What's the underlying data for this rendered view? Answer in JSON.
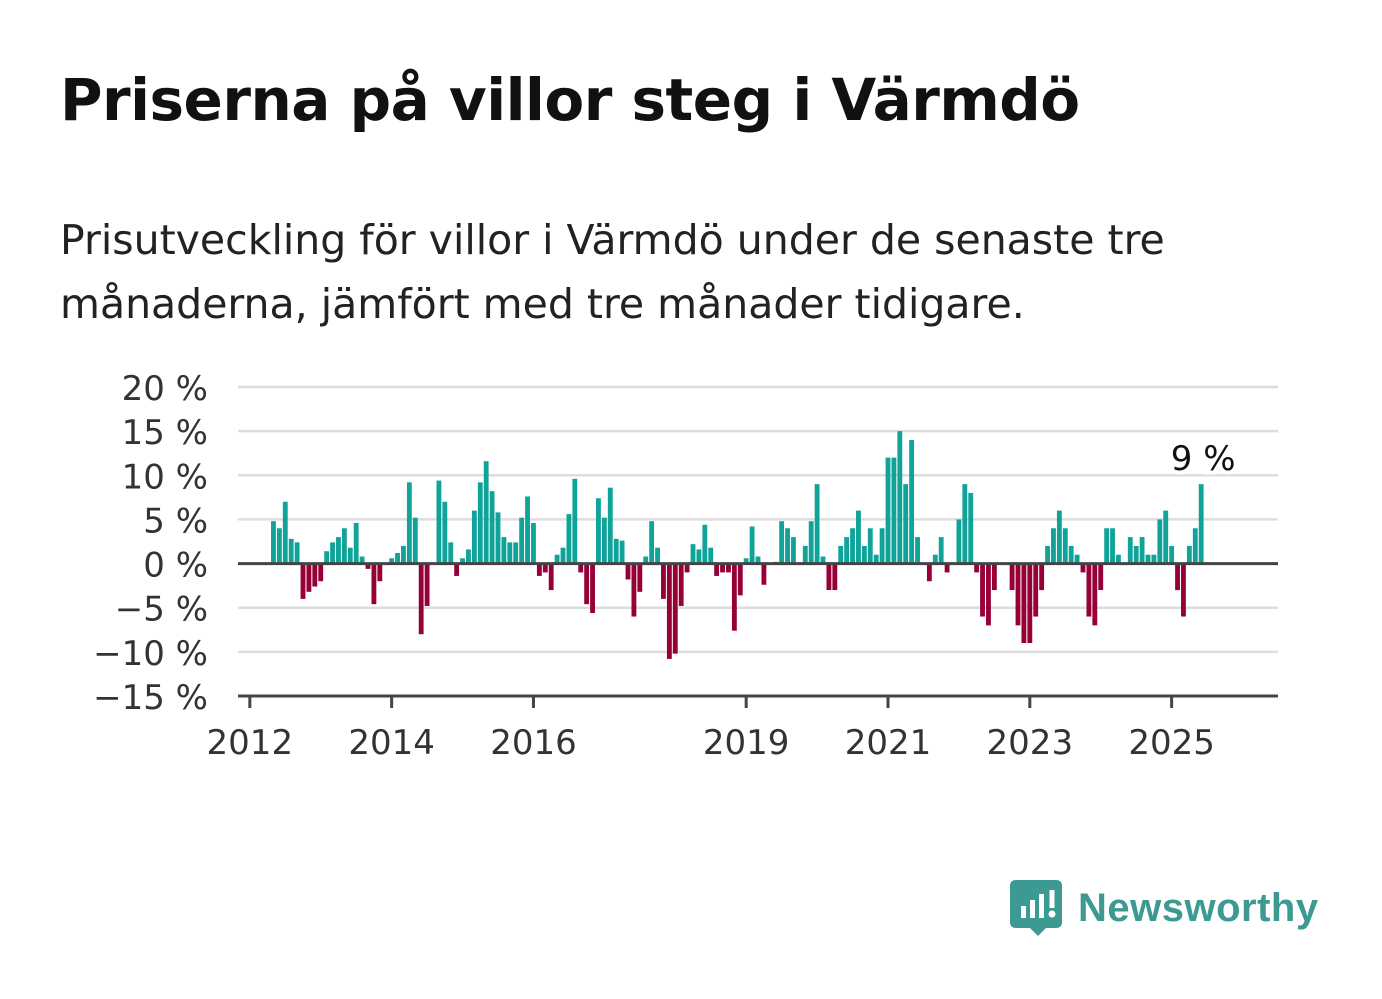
{
  "title": "Priserna på villor steg i Värmdö",
  "subtitle": "Prisutveckling för villor i Värmdö under de senaste tre månaderna, jämfört med tre månader tidigare.",
  "brand": {
    "name": "Newsworthy",
    "icon": "newsworthy-logo-icon"
  },
  "colors": {
    "positive": "#10a39a",
    "negative": "#960037",
    "grid": "#dddddd",
    "axis": "#444444",
    "brand": "#3d9a92"
  },
  "chart_data": {
    "type": "bar",
    "title": "Priserna på villor steg i Värmdö",
    "xlabel": "",
    "ylabel": "",
    "ylim": [
      -15,
      20
    ],
    "y_ticks": [
      20,
      15,
      10,
      5,
      0,
      -5,
      -10,
      -15
    ],
    "y_tick_labels": [
      "20 %",
      "15 %",
      "10 %",
      "5 %",
      "0 %",
      "−5 %",
      "−10 %",
      "−15 %"
    ],
    "x_tick_labels": [
      "2012",
      "2014",
      "2016",
      "2019",
      "2021",
      "2023",
      "2025"
    ],
    "x_tick_years": [
      2012,
      2014,
      2016,
      2019,
      2021,
      2023,
      2025
    ],
    "grid": true,
    "start": "2012-05",
    "frequency": "monthly",
    "values": [
      4.8,
      4.0,
      7.0,
      2.8,
      2.4,
      -4.0,
      -3.2,
      -2.6,
      -2.0,
      1.4,
      2.4,
      3.0,
      4.0,
      1.8,
      4.6,
      0.8,
      -0.6,
      -4.6,
      -2.0,
      0.0,
      0.6,
      1.2,
      2.0,
      9.2,
      5.2,
      -8.0,
      -4.8,
      0.0,
      9.4,
      7.0,
      2.4,
      -1.4,
      0.6,
      1.6,
      6.0,
      9.2,
      11.6,
      8.2,
      5.8,
      3.0,
      2.4,
      2.4,
      5.2,
      7.6,
      4.6,
      -1.4,
      -1.0,
      -3.0,
      1.0,
      1.8,
      5.6,
      9.6,
      -1.0,
      -4.6,
      -5.6,
      7.4,
      5.2,
      8.6,
      2.8,
      2.6,
      -1.8,
      -6.0,
      -3.2,
      0.8,
      4.8,
      1.8,
      -4.0,
      -10.8,
      -10.2,
      -4.8,
      -1.0,
      2.2,
      1.6,
      4.4,
      1.8,
      -1.4,
      -1.0,
      -1.0,
      -7.6,
      -3.6,
      0.6,
      4.2,
      0.8,
      -2.4,
      0.0,
      0.2,
      4.8,
      4.0,
      3.0,
      0.0,
      2.0,
      4.8,
      9.0,
      0.8,
      -3.0,
      -3.0,
      2.0,
      3.0,
      4.0,
      6.0,
      2.0,
      4.0,
      1.0,
      4.0,
      12.0,
      12.0,
      15.0,
      9.0,
      14.0,
      3.0,
      0.0,
      -2.0,
      1.0,
      3.0,
      -1.0,
      0.0,
      5.0,
      9.0,
      8.0,
      -1.0,
      -6.0,
      -7.0,
      -3.0,
      0.0,
      0.0,
      -3.0,
      -7.0,
      -9.0,
      -9.0,
      -6.0,
      -3.0,
      2.0,
      4.0,
      6.0,
      4.0,
      2.0,
      1.0,
      -1.0,
      -6.0,
      -7.0,
      -3.0,
      4.0,
      4.0,
      1.0,
      0.0,
      3.0,
      2.0,
      3.0,
      1.0,
      1.0,
      5.0,
      6.0,
      2.0,
      -3.0,
      -6.0,
      2.0,
      4.0,
      9.0
    ],
    "annotation": {
      "label": "9 %",
      "value": 9,
      "index": -1
    }
  }
}
